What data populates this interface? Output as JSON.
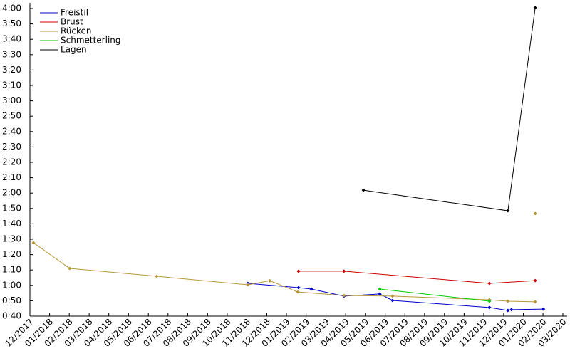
{
  "chart_data": {
    "type": "line",
    "series": [
      {
        "name": "Freistil",
        "color": "#0000cc",
        "x": [
          2018.837,
          2019.051,
          2019.105,
          2019.243,
          2019.394,
          2019.448,
          2019.857,
          2019.935,
          2019.95,
          2020.085
        ],
        "values": [
          61.3,
          58.5,
          57.6,
          53,
          54.4,
          50.2,
          45.6,
          43.7,
          44.2,
          44.6
        ]
      },
      {
        "name": "Brust",
        "color": "#cc0000",
        "x": [
          2019.051,
          2019.243,
          2019.857,
          2020.05
        ],
        "values": [
          69.2,
          69.2,
          61.3,
          63.1
        ]
      },
      {
        "name": "Rücken",
        "color": "#b8973a",
        "x": [
          2017.932,
          2018.085,
          2018.452,
          2018.837,
          2018.93,
          2019.048,
          2019.243,
          2019.448,
          2019.857,
          2019.935,
          2020.05,
          2020.05,
          2020.05
        ],
        "values": [
          87.7,
          71,
          65.9,
          60.4,
          63,
          55.7,
          53.4,
          53,
          50.6,
          49.7,
          49.3,
          null,
          106.7
        ]
      },
      {
        "name": "Schmetterling",
        "color": "#00cc00",
        "x": [
          2019.394,
          2019.857
        ],
        "values": [
          57.6,
          49.7
        ]
      },
      {
        "name": "Lagen",
        "color": "#000000",
        "x": [
          2019.325,
          2019.935,
          2020.05
        ],
        "values": [
          121.9,
          108.5,
          240.5
        ]
      }
    ],
    "xlim": [
      2017.917,
      2020.167
    ],
    "xticks": [
      {
        "value": 2017.917,
        "label": "12/2017"
      },
      {
        "value": 2018,
        "label": "01/2018"
      },
      {
        "value": 2018.083,
        "label": "02/2018"
      },
      {
        "value": 2018.167,
        "label": "03/2018"
      },
      {
        "value": 2018.25,
        "label": "04/2018"
      },
      {
        "value": 2018.333,
        "label": "05/2018"
      },
      {
        "value": 2018.417,
        "label": "06/2018"
      },
      {
        "value": 2018.5,
        "label": "07/2018"
      },
      {
        "value": 2018.583,
        "label": "08/2018"
      },
      {
        "value": 2018.667,
        "label": "09/2018"
      },
      {
        "value": 2018.75,
        "label": "10/2018"
      },
      {
        "value": 2018.833,
        "label": "11/2018"
      },
      {
        "value": 2018.917,
        "label": "12/2018"
      },
      {
        "value": 2019,
        "label": "01/2019"
      },
      {
        "value": 2019.083,
        "label": "02/2019"
      },
      {
        "value": 2019.167,
        "label": "03/2019"
      },
      {
        "value": 2019.25,
        "label": "04/2019"
      },
      {
        "value": 2019.333,
        "label": "05/2019"
      },
      {
        "value": 2019.417,
        "label": "06/2019"
      },
      {
        "value": 2019.5,
        "label": "07/2019"
      },
      {
        "value": 2019.583,
        "label": "08/2019"
      },
      {
        "value": 2019.667,
        "label": "09/2019"
      },
      {
        "value": 2019.75,
        "label": "10/2019"
      },
      {
        "value": 2019.833,
        "label": "11/2019"
      },
      {
        "value": 2019.917,
        "label": "12/2019"
      },
      {
        "value": 2020,
        "label": "01/2020"
      },
      {
        "value": 2020.083,
        "label": "02/2020"
      },
      {
        "value": 2020.167,
        "label": "03/2020"
      }
    ],
    "ylim": [
      40,
      240
    ],
    "yticks": [
      {
        "value": 40,
        "label": "0:40"
      },
      {
        "value": 50,
        "label": "0:50"
      },
      {
        "value": 60,
        "label": "1:00"
      },
      {
        "value": 70,
        "label": "1:10"
      },
      {
        "value": 80,
        "label": "1:20"
      },
      {
        "value": 90,
        "label": "1:30"
      },
      {
        "value": 100,
        "label": "1:40"
      },
      {
        "value": 110,
        "label": "1:50"
      },
      {
        "value": 120,
        "label": "2:00"
      },
      {
        "value": 130,
        "label": "2:10"
      },
      {
        "value": 140,
        "label": "2:20"
      },
      {
        "value": 150,
        "label": "2:30"
      },
      {
        "value": 160,
        "label": "2:40"
      },
      {
        "value": 170,
        "label": "2:50"
      },
      {
        "value": 180,
        "label": "3:00"
      },
      {
        "value": 190,
        "label": "3:10"
      },
      {
        "value": 200,
        "label": "3:20"
      },
      {
        "value": 210,
        "label": "3:30"
      },
      {
        "value": 220,
        "label": "3:40"
      },
      {
        "value": 230,
        "label": "3:50"
      },
      {
        "value": 240,
        "label": "4:00"
      }
    ],
    "legend": "top-left"
  }
}
